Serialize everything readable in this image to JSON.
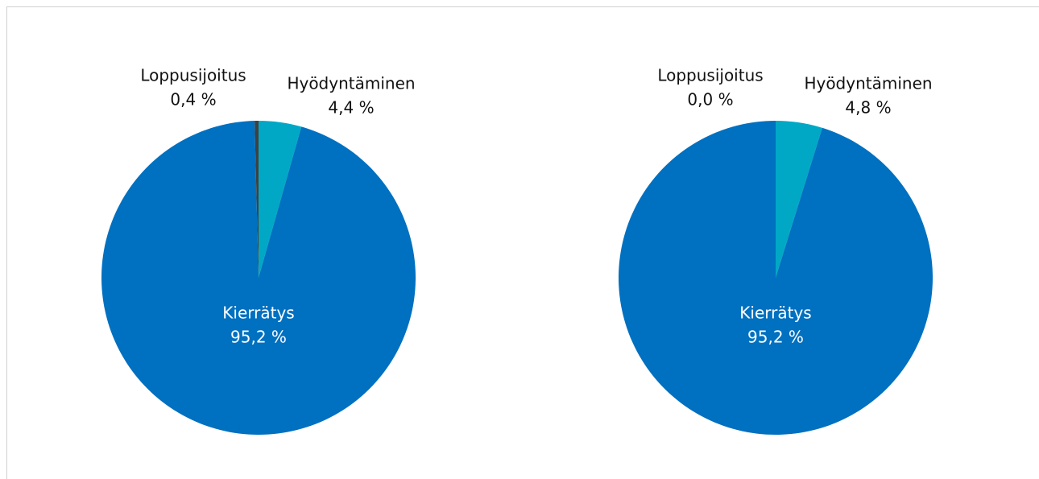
{
  "chart_data": [
    {
      "type": "pie",
      "categories": [
        "Hyödyntäminen",
        "Kierrätys",
        "Loppusijoitus"
      ],
      "values": [
        4.4,
        95.2,
        0.4
      ],
      "value_labels": [
        "4,4 %",
        "95,2 %",
        "0,4 %"
      ],
      "colors": [
        "#00a8c6",
        "#0070c0",
        "#404040"
      ]
    },
    {
      "type": "pie",
      "categories": [
        "Hyödyntäminen",
        "Kierrätys",
        "Loppusijoitus"
      ],
      "values": [
        4.8,
        95.2,
        0.0
      ],
      "value_labels": [
        "4,8 %",
        "95,2 %",
        "0,0 %"
      ],
      "colors": [
        "#00a8c6",
        "#0070c0",
        "#404040"
      ]
    }
  ]
}
